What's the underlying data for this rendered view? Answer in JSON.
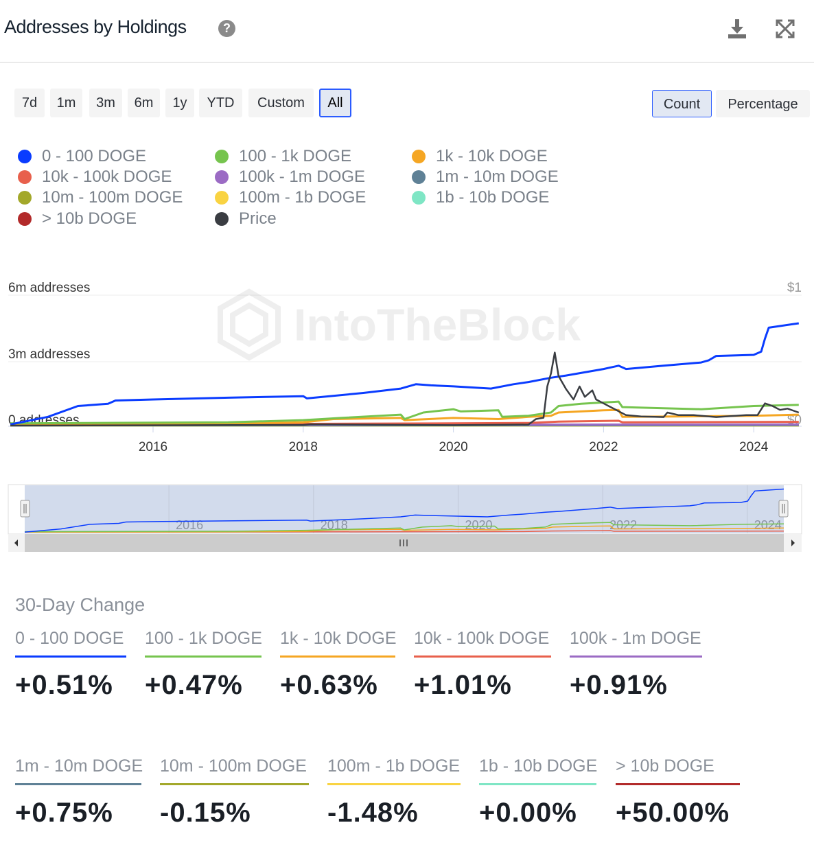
{
  "header": {
    "title": "Addresses by Holdings",
    "help_icon": "question-circle-icon",
    "download_icon": "download-icon",
    "fullscreen_icon": "expand-icon"
  },
  "range_buttons": [
    {
      "label": "7d"
    },
    {
      "label": "1m"
    },
    {
      "label": "3m"
    },
    {
      "label": "6m"
    },
    {
      "label": "1y"
    },
    {
      "label": "YTD"
    },
    {
      "label": "Custom"
    },
    {
      "label": "All",
      "active": true
    }
  ],
  "mode_buttons": [
    {
      "label": "Count",
      "active": true
    },
    {
      "label": "Percentage"
    }
  ],
  "legend": [
    {
      "label": "0 - 100 DOGE",
      "color": "#0a3cff"
    },
    {
      "label": "100 - 1k DOGE",
      "color": "#76c44e"
    },
    {
      "label": "1k - 10k DOGE",
      "color": "#f5a623"
    },
    {
      "label": "10k - 100k DOGE",
      "color": "#e8604c"
    },
    {
      "label": "100k - 1m DOGE",
      "color": "#9b6bc4"
    },
    {
      "label": "1m - 10m DOGE",
      "color": "#5f8196"
    },
    {
      "label": "10m - 100m DOGE",
      "color": "#a3a82a"
    },
    {
      "label": "100m - 1b DOGE",
      "color": "#f9d342"
    },
    {
      "label": "1b - 10b DOGE",
      "color": "#7fe6c5"
    },
    {
      "label": "> 10b DOGE",
      "color": "#b22a2a"
    },
    {
      "label": "Price",
      "color": "#3a3d42"
    }
  ],
  "watermark": "IntoTheBlock",
  "chart_data": {
    "type": "line",
    "y_left": {
      "ticks": [
        "0 addresses",
        "3m addresses",
        "6m addresses"
      ],
      "tick_values": [
        0,
        3,
        6
      ],
      "unit": "millions",
      "range": [
        0,
        6
      ]
    },
    "y_right": {
      "ticks": [
        "$0",
        "$1"
      ],
      "tick_values": [
        0,
        1
      ],
      "range": [
        0,
        1
      ]
    },
    "x": {
      "ticks": [
        "2016",
        "2018",
        "2020",
        "2022",
        "2024"
      ],
      "range": [
        2014.1,
        2024.6
      ]
    },
    "grid": true,
    "series": [
      {
        "name": "0 - 100 DOGE",
        "axis": "left",
        "points": [
          [
            2014.1,
            0.05
          ],
          [
            2014.6,
            0.4
          ],
          [
            2015,
            0.9
          ],
          [
            2015.4,
            1.0
          ],
          [
            2015.5,
            1.15
          ],
          [
            2016,
            1.2
          ],
          [
            2017,
            1.28
          ],
          [
            2018,
            1.35
          ],
          [
            2018.05,
            1.25
          ],
          [
            2018.8,
            1.5
          ],
          [
            2019.3,
            1.7
          ],
          [
            2019.5,
            1.9
          ],
          [
            2019.7,
            1.85
          ],
          [
            2020,
            1.8
          ],
          [
            2020.5,
            1.7
          ],
          [
            2020.8,
            1.9
          ],
          [
            2021,
            2.0
          ],
          [
            2021.3,
            2.2
          ],
          [
            2021.5,
            2.3
          ],
          [
            2022,
            2.6
          ],
          [
            2022.2,
            2.75
          ],
          [
            2022.3,
            2.6
          ],
          [
            2022.8,
            2.75
          ],
          [
            2023.3,
            2.9
          ],
          [
            2023.4,
            3.0
          ],
          [
            2023.5,
            3.2
          ],
          [
            2024,
            3.25
          ],
          [
            2024.1,
            3.4
          ],
          [
            2024.15,
            4.0
          ],
          [
            2024.2,
            4.5
          ],
          [
            2024.6,
            4.7
          ]
        ]
      },
      {
        "name": "100 - 1k DOGE",
        "axis": "left",
        "points": [
          [
            2014.1,
            0.1
          ],
          [
            2017,
            0.15
          ],
          [
            2018,
            0.25
          ],
          [
            2018.5,
            0.35
          ],
          [
            2019.3,
            0.5
          ],
          [
            2019.35,
            0.3
          ],
          [
            2019.6,
            0.6
          ],
          [
            2020,
            0.75
          ],
          [
            2020.1,
            0.65
          ],
          [
            2020.6,
            0.7
          ],
          [
            2020.65,
            0.4
          ],
          [
            2021,
            0.45
          ],
          [
            2021.3,
            0.6
          ],
          [
            2021.4,
            0.9
          ],
          [
            2021.7,
            1.0
          ],
          [
            2022.2,
            1.1
          ],
          [
            2022.25,
            0.85
          ],
          [
            2023.3,
            0.75
          ],
          [
            2024,
            0.9
          ],
          [
            2024.6,
            0.95
          ]
        ]
      },
      {
        "name": "1k - 10k DOGE",
        "axis": "left",
        "points": [
          [
            2014.1,
            0.05
          ],
          [
            2017,
            0.08
          ],
          [
            2018,
            0.15
          ],
          [
            2018.4,
            0.3
          ],
          [
            2019.3,
            0.35
          ],
          [
            2019.35,
            0.25
          ],
          [
            2020,
            0.35
          ],
          [
            2020.6,
            0.3
          ],
          [
            2021,
            0.4
          ],
          [
            2021.3,
            0.45
          ],
          [
            2021.4,
            0.6
          ],
          [
            2022,
            0.7
          ],
          [
            2022.2,
            0.72
          ],
          [
            2022.25,
            0.4
          ],
          [
            2023,
            0.42
          ],
          [
            2024,
            0.45
          ],
          [
            2024.6,
            0.5
          ]
        ]
      },
      {
        "name": "10k - 100k DOGE",
        "axis": "left",
        "points": [
          [
            2014.1,
            0.06
          ],
          [
            2018,
            0.08
          ],
          [
            2020,
            0.1
          ],
          [
            2021,
            0.12
          ],
          [
            2021.4,
            0.18
          ],
          [
            2022.2,
            0.22
          ],
          [
            2022.25,
            0.15
          ],
          [
            2024.6,
            0.17
          ]
        ]
      },
      {
        "name": "100k - 1m DOGE",
        "axis": "left",
        "points": [
          [
            2014.1,
            0.03
          ],
          [
            2024.6,
            0.05
          ]
        ]
      },
      {
        "name": "1m - 10m DOGE",
        "axis": "left",
        "points": [
          [
            2014.1,
            0.01
          ],
          [
            2024.6,
            0.02
          ]
        ]
      },
      {
        "name": "10m - 100m DOGE",
        "axis": "left",
        "points": [
          [
            2014.1,
            0.01
          ],
          [
            2024.6,
            0.01
          ]
        ]
      },
      {
        "name": "100m - 1b DOGE",
        "axis": "left",
        "points": [
          [
            2014.1,
            0.005
          ],
          [
            2024.6,
            0.005
          ]
        ]
      },
      {
        "name": "1b - 10b DOGE",
        "axis": "left",
        "points": [
          [
            2014.1,
            0.002
          ],
          [
            2024.6,
            0.002
          ]
        ]
      },
      {
        "name": "> 10b DOGE",
        "axis": "left",
        "points": [
          [
            2014.1,
            0.001
          ],
          [
            2024.6,
            0.001
          ]
        ]
      },
      {
        "name": "Price",
        "axis": "right",
        "points": [
          [
            2014.1,
            0.0
          ],
          [
            2018,
            0.005
          ],
          [
            2018.1,
            0.01
          ],
          [
            2020,
            0.003
          ],
          [
            2021,
            0.008
          ],
          [
            2021.1,
            0.05
          ],
          [
            2021.2,
            0.06
          ],
          [
            2021.25,
            0.3
          ],
          [
            2021.3,
            0.4
          ],
          [
            2021.35,
            0.56
          ],
          [
            2021.4,
            0.38
          ],
          [
            2021.5,
            0.28
          ],
          [
            2021.6,
            0.2
          ],
          [
            2021.68,
            0.3
          ],
          [
            2021.75,
            0.22
          ],
          [
            2021.85,
            0.27
          ],
          [
            2021.9,
            0.2
          ],
          [
            2022,
            0.17
          ],
          [
            2022.1,
            0.14
          ],
          [
            2022.3,
            0.08
          ],
          [
            2022.5,
            0.07
          ],
          [
            2022.8,
            0.065
          ],
          [
            2022.85,
            0.1
          ],
          [
            2023,
            0.08
          ],
          [
            2023.2,
            0.08
          ],
          [
            2023.5,
            0.065
          ],
          [
            2023.9,
            0.08
          ],
          [
            2024.05,
            0.08
          ],
          [
            2024.15,
            0.17
          ],
          [
            2024.25,
            0.15
          ],
          [
            2024.35,
            0.12
          ],
          [
            2024.45,
            0.13
          ],
          [
            2024.6,
            0.1
          ]
        ]
      }
    ]
  },
  "navigator": {
    "ticks": [
      "2016",
      "2018",
      "2020",
      "2022",
      "2024"
    ]
  },
  "changes": {
    "heading": "30-Day Change",
    "items": [
      {
        "label": "0 - 100 DOGE",
        "value": "+0.51%",
        "color": "#0a3cff"
      },
      {
        "label": "100 - 1k DOGE",
        "value": "+0.47%",
        "color": "#76c44e"
      },
      {
        "label": "1k - 10k DOGE",
        "value": "+0.63%",
        "color": "#f5a623"
      },
      {
        "label": "10k - 100k DOGE",
        "value": "+1.01%",
        "color": "#e8604c"
      },
      {
        "label": "100k - 1m DOGE",
        "value": "+0.91%",
        "color": "#9b6bc4"
      },
      {
        "label": "1m - 10m DOGE",
        "value": "+0.75%",
        "color": "#5f8196"
      },
      {
        "label": "10m - 100m DOGE",
        "value": "-0.15%",
        "color": "#a3a82a"
      },
      {
        "label": "100m - 1b DOGE",
        "value": "-1.48%",
        "color": "#f9d342"
      },
      {
        "label": "1b - 10b DOGE",
        "value": "+0.00%",
        "color": "#7fe6c5"
      },
      {
        "label": "> 10b DOGE",
        "value": "+50.00%",
        "color": "#b22a2a"
      }
    ]
  }
}
